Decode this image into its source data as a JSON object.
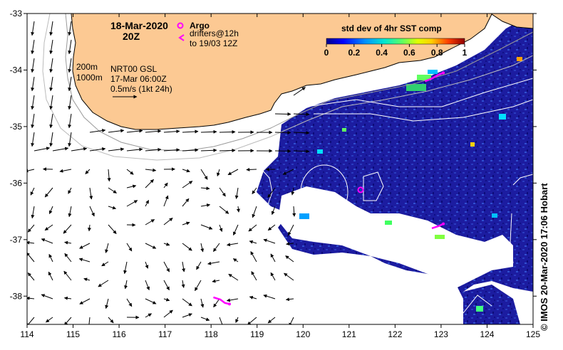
{
  "title": {
    "date": "18-Mar-2020",
    "time": "20Z"
  },
  "legend": {
    "argo_label": "Argo",
    "drifters_label_1": "drifters@12h",
    "drifters_label_2": "to 19/03 12Z",
    "argo_color": "#ff00ff",
    "drifter_color": "#ff00ff"
  },
  "info": {
    "contour_200": "200m",
    "contour_1000": "1000m",
    "product": "NRT00 GSL",
    "product_time": "17-Mar 06:00Z",
    "vector_scale": "0.5m/s (1kt 24h)"
  },
  "colorbar": {
    "title": "std dev of 4hr SST comp",
    "min": 0,
    "max": 1,
    "ticks": [
      "0",
      "0.2",
      "0.4",
      "0.6",
      "0.8",
      "1"
    ],
    "colors": [
      "#00008b",
      "#0000ff",
      "#0080ff",
      "#00e0e0",
      "#40ff80",
      "#c0ff00",
      "#ffff00",
      "#ffa000",
      "#ff3000",
      "#a00000"
    ]
  },
  "axes": {
    "lon_ticks": [
      "114",
      "115",
      "116",
      "117",
      "118",
      "119",
      "120",
      "121",
      "122",
      "123",
      "124",
      "125"
    ],
    "lat_ticks": [
      "-33",
      "-34",
      "-35",
      "-36",
      "-37",
      "-38"
    ],
    "lon_range": [
      114,
      125
    ],
    "lat_range": [
      -38.5,
      -33
    ]
  },
  "colors": {
    "land": "#fcc993",
    "ocean_data": "#1a1a9a",
    "no_data": "#ffffff",
    "frame": "#000000"
  },
  "argo_floats": [
    {
      "lon": 121.25,
      "lat": -36.12
    }
  ],
  "drifter_tracks": [
    [
      [
        122.65,
        -34.2
      ],
      [
        122.8,
        -34.15
      ],
      [
        122.95,
        -34.08
      ],
      [
        123.05,
        -34.05
      ]
    ],
    [
      [
        122.8,
        -36.8
      ],
      [
        122.95,
        -36.76
      ],
      [
        123.05,
        -36.72
      ]
    ],
    [
      [
        118.05,
        -38.02
      ],
      [
        118.2,
        -38.06
      ],
      [
        118.3,
        -38.12
      ],
      [
        118.4,
        -38.14
      ]
    ]
  ],
  "credit": "© IMOS 20-Mar-2020 17:06 Hobart"
}
